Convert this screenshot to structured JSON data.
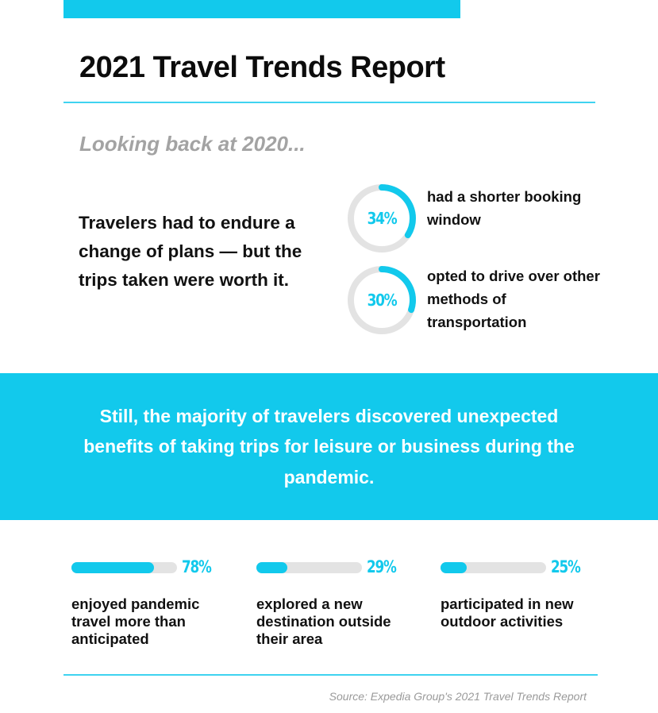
{
  "title": "2021 Travel Trends Report",
  "subtitle": "Looking back at 2020...",
  "lead": "Travelers had to endure a change of plans — but the trips taken were worth it.",
  "highlight": "Still, the majority of travelers discovered unexpected benefits of taking trips for leisure or business during the pandemic.",
  "source": "Source: Expedia Group's 2021 Travel Trends Report",
  "colors": {
    "accent": "#12c9ec",
    "track": "#e3e3e3",
    "rule": "#3fd3f0"
  },
  "chart_data": [
    {
      "type": "pie",
      "variant": "donut",
      "charts": [
        {
          "value": 34,
          "label": "34%",
          "caption": "had a shorter booking window"
        },
        {
          "value": 30,
          "label": "30%",
          "caption": "opted to drive over other methods of transportation"
        }
      ],
      "ylim": [
        0,
        100
      ]
    },
    {
      "type": "bar",
      "orientation": "horizontal",
      "categories": [
        "enjoyed pandemic travel more than anticipated",
        "explored a new destination outside their area",
        "participated in new outdoor activities"
      ],
      "values": [
        78,
        29,
        25
      ],
      "value_labels": [
        "78%",
        "29%",
        "25%"
      ],
      "ylim": [
        0,
        100
      ]
    }
  ]
}
